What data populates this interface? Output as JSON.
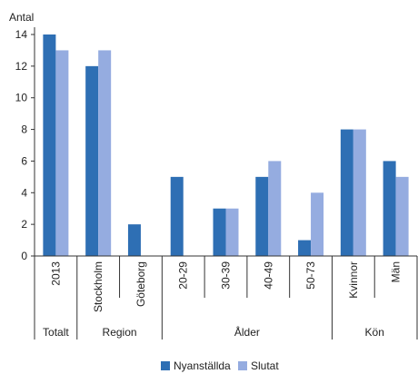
{
  "chart_data": {
    "type": "bar",
    "ylabel": "Antal",
    "ylim": [
      0,
      14
    ],
    "yticks": [
      0,
      2,
      4,
      6,
      8,
      10,
      12,
      14
    ],
    "grid": false,
    "legend_position": "bottom",
    "categories": [
      "2013",
      "Stockholm",
      "Göteborg",
      "20-29",
      "30-39",
      "40-49",
      "50-73",
      "Kvinnor",
      "Män"
    ],
    "groups": [
      {
        "label": "Totalt",
        "count": 1
      },
      {
        "label": "Region",
        "count": 2
      },
      {
        "label": "Ålder",
        "count": 4
      },
      {
        "label": "Kön",
        "count": 2
      }
    ],
    "series": [
      {
        "name": "Nyanställda",
        "color": "#2e6fb4",
        "values": [
          14,
          12,
          2,
          5,
          3,
          5,
          1,
          8,
          6
        ]
      },
      {
        "name": "Slutat",
        "color": "#95ace0",
        "values": [
          13,
          13,
          0,
          0,
          3,
          6,
          4,
          8,
          5
        ]
      }
    ]
  }
}
